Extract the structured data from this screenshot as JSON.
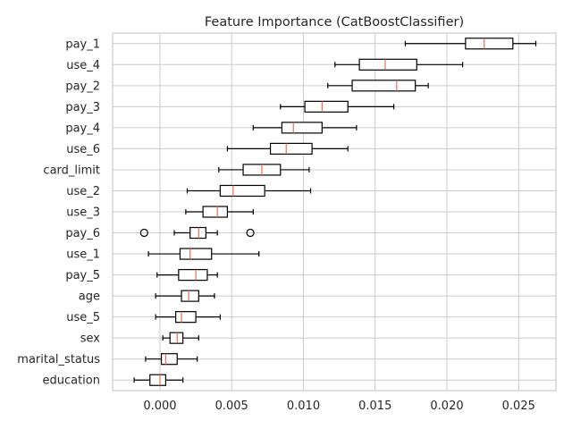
{
  "chart_data": {
    "type": "boxplot",
    "orientation": "horizontal",
    "title": "Feature Importance (CatBoostClassifier)",
    "xlabel": "",
    "ylabel": "",
    "xlim": [
      -0.0033,
      0.0276
    ],
    "xticks": [
      0.0,
      0.005,
      0.01,
      0.015,
      0.02,
      0.025
    ],
    "xtick_labels": [
      "0.000",
      "0.005",
      "0.010",
      "0.015",
      "0.020",
      "0.025"
    ],
    "grid": true,
    "colors": {
      "box": "#000000",
      "median": "#e8704a",
      "grid": "#cccccc"
    },
    "categories": [
      "pay_1",
      "use_4",
      "pay_2",
      "pay_3",
      "pay_4",
      "use_6",
      "card_limit",
      "use_2",
      "use_3",
      "pay_6",
      "use_1",
      "pay_5",
      "age",
      "use_5",
      "sex",
      "marital_status",
      "education"
    ],
    "boxes": [
      {
        "label": "pay_1",
        "whislo": 0.0171,
        "q1": 0.0213,
        "med": 0.0226,
        "q3": 0.0246,
        "whishi": 0.0262,
        "fliers": []
      },
      {
        "label": "use_4",
        "whislo": 0.0122,
        "q1": 0.0139,
        "med": 0.0157,
        "q3": 0.0179,
        "whishi": 0.0211,
        "fliers": []
      },
      {
        "label": "pay_2",
        "whislo": 0.0117,
        "q1": 0.0134,
        "med": 0.0165,
        "q3": 0.0178,
        "whishi": 0.0187,
        "fliers": []
      },
      {
        "label": "pay_3",
        "whislo": 0.0084,
        "q1": 0.0101,
        "med": 0.0113,
        "q3": 0.0131,
        "whishi": 0.0163,
        "fliers": []
      },
      {
        "label": "pay_4",
        "whislo": 0.0065,
        "q1": 0.0085,
        "med": 0.0093,
        "q3": 0.0113,
        "whishi": 0.0137,
        "fliers": []
      },
      {
        "label": "use_6",
        "whislo": 0.0047,
        "q1": 0.0077,
        "med": 0.0088,
        "q3": 0.0106,
        "whishi": 0.0131,
        "fliers": []
      },
      {
        "label": "card_limit",
        "whislo": 0.0041,
        "q1": 0.0058,
        "med": 0.0071,
        "q3": 0.0084,
        "whishi": 0.0104,
        "fliers": []
      },
      {
        "label": "use_2",
        "whislo": 0.0019,
        "q1": 0.0042,
        "med": 0.0051,
        "q3": 0.0073,
        "whishi": 0.0105,
        "fliers": []
      },
      {
        "label": "use_3",
        "whislo": 0.0018,
        "q1": 0.003,
        "med": 0.004,
        "q3": 0.0047,
        "whishi": 0.0065,
        "fliers": []
      },
      {
        "label": "pay_6",
        "whislo": 0.001,
        "q1": 0.0021,
        "med": 0.0027,
        "q3": 0.0032,
        "whishi": 0.004,
        "fliers": [
          -0.0011,
          0.0063
        ]
      },
      {
        "label": "use_1",
        "whislo": -0.0008,
        "q1": 0.0014,
        "med": 0.0021,
        "q3": 0.0036,
        "whishi": 0.0069,
        "fliers": []
      },
      {
        "label": "pay_5",
        "whislo": -0.0002,
        "q1": 0.0013,
        "med": 0.0025,
        "q3": 0.0033,
        "whishi": 0.004,
        "fliers": []
      },
      {
        "label": "age",
        "whislo": -0.0003,
        "q1": 0.0015,
        "med": 0.002,
        "q3": 0.0027,
        "whishi": 0.0038,
        "fliers": []
      },
      {
        "label": "use_5",
        "whislo": -0.0003,
        "q1": 0.0011,
        "med": 0.0015,
        "q3": 0.0025,
        "whishi": 0.0042,
        "fliers": []
      },
      {
        "label": "sex",
        "whislo": 0.0002,
        "q1": 0.0007,
        "med": 0.0012,
        "q3": 0.0016,
        "whishi": 0.0027,
        "fliers": []
      },
      {
        "label": "marital_status",
        "whislo": -0.001,
        "q1": 0.0001,
        "med": 0.0004,
        "q3": 0.0012,
        "whishi": 0.0026,
        "fliers": []
      },
      {
        "label": "education",
        "whislo": -0.0018,
        "q1": -0.0007,
        "med": 0.0,
        "q3": 0.0004,
        "whishi": 0.0016,
        "fliers": []
      }
    ]
  }
}
